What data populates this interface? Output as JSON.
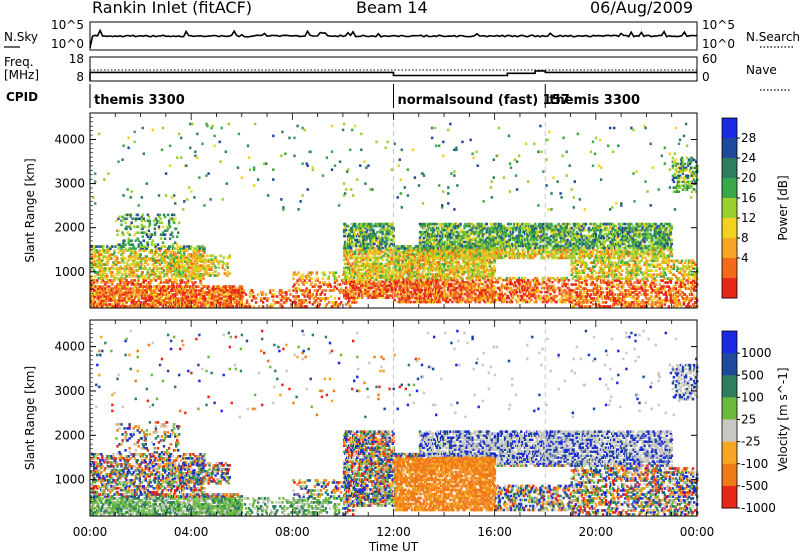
{
  "header": {
    "station": "Rankin Inlet (fitACF)",
    "beam": "Beam 14",
    "date": "06/Aug/2009"
  },
  "colors": {
    "power": [
      "#1b2ae0",
      "#1f4a9c",
      "#2e7d5e",
      "#3aa84a",
      "#9bd12e",
      "#f2d21c",
      "#f5a623",
      "#f26b1b",
      "#e8271b"
    ],
    "velocity": [
      "#1b2ae0",
      "#1f4a9c",
      "#2e7d5e",
      "#6dbb3e",
      "#c8c8c0",
      "#f5a623",
      "#f07a1a",
      "#e8271b"
    ],
    "axis": "#000000",
    "dashed_line": "#c8c8c8"
  },
  "chart_data": [
    {
      "type": "line",
      "title": "",
      "ylabel_left": "N.Sky",
      "ylabel_right": "N.Search",
      "left_ticks": [
        "10^5",
        "10^0"
      ],
      "right_ticks": [
        "10^5",
        "10^0"
      ]
    },
    {
      "type": "line",
      "ylabel_left": "Freq. [MHz]",
      "ylabel_right": "Nave",
      "left_ticks": [
        "18",
        "8"
      ],
      "right_ticks": [
        "60",
        "0"
      ],
      "freq_steps": [
        {
          "start": 0.0,
          "end": 12.0,
          "freq": 11.6
        },
        {
          "start": 12.0,
          "end": 16.5,
          "freq": 10.3
        },
        {
          "start": 16.5,
          "end": 17.6,
          "freq": 11.2
        },
        {
          "start": 17.6,
          "end": 18.0,
          "freq": 12.2
        },
        {
          "start": 18.0,
          "end": 24.0,
          "freq": 11.6
        }
      ]
    },
    {
      "type": "table",
      "ylabel": "CPID",
      "segments": [
        {
          "start": 0.0,
          "end": 12.0,
          "label": "themis 3300"
        },
        {
          "start": 12.0,
          "end": 18.0,
          "label": "normalsound (fast) 157"
        },
        {
          "start": 18.0,
          "end": 24.0,
          "label": "themis 3300"
        }
      ]
    },
    {
      "type": "heatmap",
      "ylabel": "Slant Range [km]",
      "colorbar_label": "Power [dB]",
      "colorbar_ticks": [
        "28",
        "24",
        "20",
        "16",
        "12",
        "8",
        "4"
      ],
      "y_ticks": [
        "4000",
        "3000",
        "2000",
        "1000"
      ],
      "ylim": [
        180,
        4600
      ],
      "xlim": [
        0,
        24
      ]
    },
    {
      "type": "heatmap",
      "ylabel": "Slant Range [km]",
      "colorbar_label": "Velocity [m s^-1]",
      "colorbar_ticks": [
        "1000",
        "500",
        "100",
        "25",
        "-25",
        "-100",
        "-500",
        "-1000"
      ],
      "y_ticks": [
        "4000",
        "3000",
        "2000",
        "1000"
      ],
      "ylim": [
        180,
        4600
      ],
      "xlim": [
        0,
        24
      ]
    }
  ],
  "x_axis": {
    "label": "Time UT",
    "ticks": [
      "00:00",
      "04:00",
      "08:00",
      "12:00",
      "16:00",
      "20:00",
      "00:00"
    ],
    "tick_hours": [
      0,
      4,
      8,
      12,
      16,
      20,
      24
    ]
  }
}
